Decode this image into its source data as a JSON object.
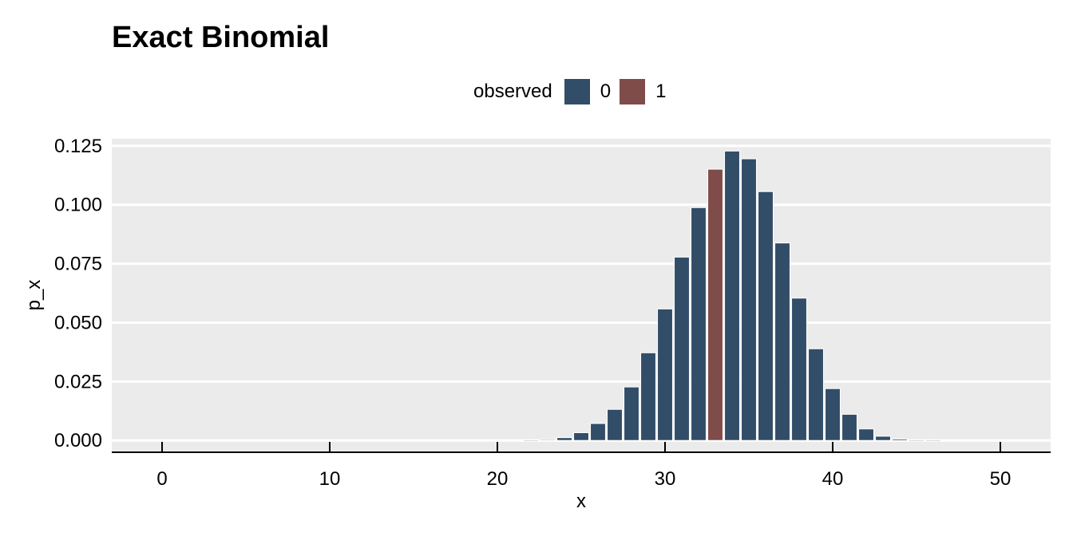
{
  "chart_data": {
    "type": "bar",
    "title": "Exact Binomial",
    "xlabel": "x",
    "ylabel": "p_x",
    "xlim": [
      -3,
      53
    ],
    "ylim": [
      -0.005,
      0.128
    ],
    "x_ticks": [
      0,
      10,
      20,
      30,
      40,
      50
    ],
    "x_tick_labels": [
      "0",
      "10",
      "20",
      "30",
      "40",
      "50"
    ],
    "y_ticks": [
      0,
      0.025,
      0.05,
      0.075,
      0.1,
      0.125
    ],
    "y_tick_labels": [
      "0.000",
      "0.025",
      "0.050",
      "0.075",
      "0.100",
      "0.125"
    ],
    "grid": true,
    "legend": {
      "title": "observed",
      "position": "top",
      "entries": [
        {
          "label": "0",
          "color": "#324d67"
        },
        {
          "label": "1",
          "color": "#7f4c4a"
        }
      ]
    },
    "x": [
      0,
      1,
      2,
      3,
      4,
      5,
      6,
      7,
      8,
      9,
      10,
      11,
      12,
      13,
      14,
      15,
      16,
      17,
      18,
      19,
      20,
      21,
      22,
      23,
      24,
      25,
      26,
      27,
      28,
      29,
      30,
      31,
      32,
      33,
      34,
      35,
      36,
      37,
      38,
      39,
      40,
      41,
      42,
      43,
      44,
      45,
      46,
      47,
      48,
      49,
      50
    ],
    "values": [
      0,
      0,
      0,
      0,
      0,
      0,
      0,
      0,
      0,
      0,
      0,
      0,
      0,
      0,
      0,
      0,
      0,
      0,
      0,
      0,
      0,
      0,
      0.0001,
      0.0004,
      0.0012,
      0.0033,
      0.0072,
      0.0132,
      0.0227,
      0.0372,
      0.0558,
      0.0778,
      0.0988,
      0.1151,
      0.1228,
      0.1195,
      0.1056,
      0.0838,
      0.0604,
      0.0389,
      0.022,
      0.0111,
      0.0049,
      0.0018,
      0.0006,
      0.0002,
      0.0001,
      0,
      0,
      0,
      0
    ],
    "observed": [
      0,
      0,
      0,
      0,
      0,
      0,
      0,
      0,
      0,
      0,
      0,
      0,
      0,
      0,
      0,
      0,
      0,
      0,
      0,
      0,
      0,
      0,
      0,
      0,
      0,
      0,
      0,
      0,
      0,
      0,
      0,
      0,
      0,
      1,
      0,
      0,
      0,
      0,
      0,
      0,
      0,
      0,
      0,
      0,
      0,
      0,
      0,
      0,
      0,
      0,
      0
    ],
    "colors": {
      "observed_0": "#324d67",
      "observed_1": "#7f4c4a",
      "panel": "#ebebeb",
      "grid": "#ffffff"
    }
  }
}
